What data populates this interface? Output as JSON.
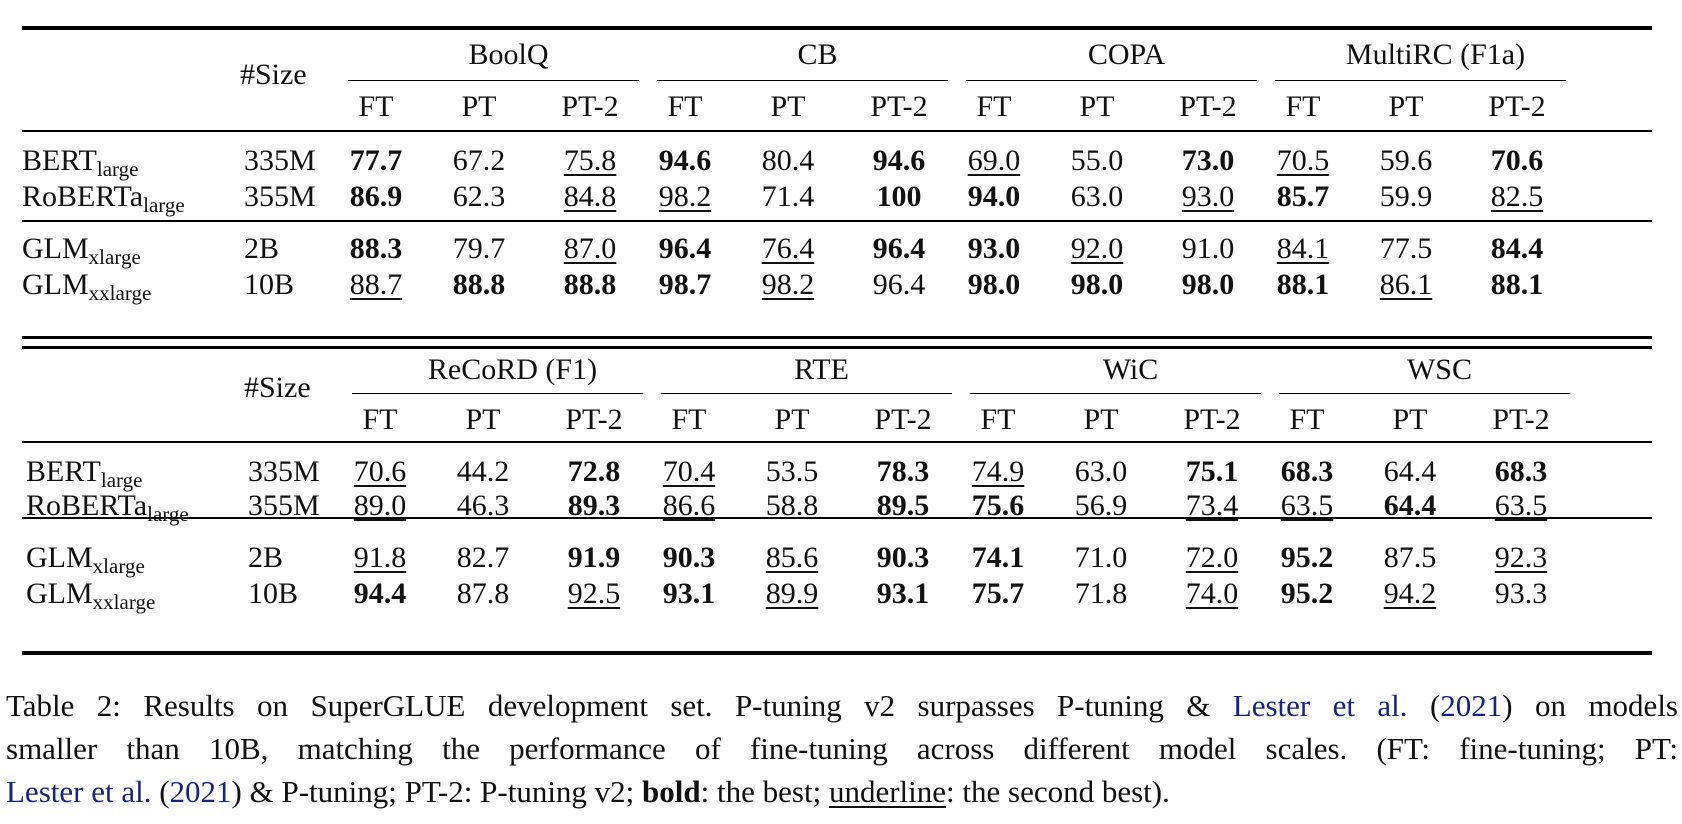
{
  "tables": [
    {
      "size_header": "#Size",
      "groups": [
        "BoolQ",
        "CB",
        "COPA",
        "MultiRC (F1a)"
      ],
      "sub_headers": [
        "FT",
        "PT",
        "PT-2"
      ],
      "sections": [
        [
          {
            "model": "BERT",
            "model_sub": "large",
            "size": "335M",
            "cells": [
              {
                "v": "77.7",
                "s": "b"
              },
              {
                "v": "67.2",
                "s": ""
              },
              {
                "v": "75.8",
                "s": "u"
              },
              {
                "v": "94.6",
                "s": "b"
              },
              {
                "v": "80.4",
                "s": ""
              },
              {
                "v": "94.6",
                "s": "b"
              },
              {
                "v": "69.0",
                "s": "u"
              },
              {
                "v": "55.0",
                "s": ""
              },
              {
                "v": "73.0",
                "s": "b"
              },
              {
                "v": "70.5",
                "s": "u"
              },
              {
                "v": "59.6",
                "s": ""
              },
              {
                "v": "70.6",
                "s": "b"
              }
            ]
          },
          {
            "model": "RoBERTa",
            "model_sub": "large",
            "size": "355M",
            "cells": [
              {
                "v": "86.9",
                "s": "b"
              },
              {
                "v": "62.3",
                "s": ""
              },
              {
                "v": "84.8",
                "s": "u"
              },
              {
                "v": "98.2",
                "s": "u"
              },
              {
                "v": "71.4",
                "s": ""
              },
              {
                "v": "100",
                "s": "b"
              },
              {
                "v": "94.0",
                "s": "b"
              },
              {
                "v": "63.0",
                "s": ""
              },
              {
                "v": "93.0",
                "s": "u"
              },
              {
                "v": "85.7",
                "s": "b"
              },
              {
                "v": "59.9",
                "s": ""
              },
              {
                "v": "82.5",
                "s": "u"
              }
            ]
          }
        ],
        [
          {
            "model": "GLM",
            "model_sub": "xlarge",
            "size": "2B",
            "cells": [
              {
                "v": "88.3",
                "s": "b"
              },
              {
                "v": "79.7",
                "s": ""
              },
              {
                "v": "87.0",
                "s": "u"
              },
              {
                "v": "96.4",
                "s": "b"
              },
              {
                "v": "76.4",
                "s": "u"
              },
              {
                "v": "96.4",
                "s": "b"
              },
              {
                "v": "93.0",
                "s": "b"
              },
              {
                "v": "92.0",
                "s": "u"
              },
              {
                "v": "91.0",
                "s": ""
              },
              {
                "v": "84.1",
                "s": "u"
              },
              {
                "v": "77.5",
                "s": ""
              },
              {
                "v": "84.4",
                "s": "b"
              }
            ]
          },
          {
            "model": "GLM",
            "model_sub": "xxlarge",
            "size": "10B",
            "cells": [
              {
                "v": "88.7",
                "s": "u"
              },
              {
                "v": "88.8",
                "s": "b"
              },
              {
                "v": "88.8",
                "s": "b"
              },
              {
                "v": "98.7",
                "s": "b"
              },
              {
                "v": "98.2",
                "s": "u"
              },
              {
                "v": "96.4",
                "s": ""
              },
              {
                "v": "98.0",
                "s": "b"
              },
              {
                "v": "98.0",
                "s": "b"
              },
              {
                "v": "98.0",
                "s": "b"
              },
              {
                "v": "88.1",
                "s": "b"
              },
              {
                "v": "86.1",
                "s": "u"
              },
              {
                "v": "88.1",
                "s": "b"
              }
            ]
          }
        ]
      ]
    },
    {
      "size_header": "#Size",
      "groups": [
        "ReCoRD (F1)",
        "RTE",
        "WiC",
        "WSC"
      ],
      "sub_headers": [
        "FT",
        "PT",
        "PT-2"
      ],
      "sections": [
        [
          {
            "model": "BERT",
            "model_sub": "large",
            "size": "335M",
            "cells": [
              {
                "v": "70.6",
                "s": "u"
              },
              {
                "v": "44.2",
                "s": ""
              },
              {
                "v": "72.8",
                "s": "b"
              },
              {
                "v": "70.4",
                "s": "u"
              },
              {
                "v": "53.5",
                "s": ""
              },
              {
                "v": "78.3",
                "s": "b"
              },
              {
                "v": "74.9",
                "s": "u"
              },
              {
                "v": "63.0",
                "s": ""
              },
              {
                "v": "75.1",
                "s": "b"
              },
              {
                "v": "68.3",
                "s": "b"
              },
              {
                "v": "64.4",
                "s": ""
              },
              {
                "v": "68.3",
                "s": "b"
              }
            ]
          },
          {
            "model": "RoBERTa",
            "model_sub": "large",
            "size": "355M",
            "cells": [
              {
                "v": "89.0",
                "s": "u"
              },
              {
                "v": "46.3",
                "s": ""
              },
              {
                "v": "89.3",
                "s": "b"
              },
              {
                "v": "86.6",
                "s": "u"
              },
              {
                "v": "58.8",
                "s": ""
              },
              {
                "v": "89.5",
                "s": "b"
              },
              {
                "v": "75.6",
                "s": "b"
              },
              {
                "v": "56.9",
                "s": ""
              },
              {
                "v": "73.4",
                "s": "u"
              },
              {
                "v": "63.5",
                "s": "u"
              },
              {
                "v": "64.4",
                "s": "b"
              },
              {
                "v": "63.5",
                "s": "u"
              }
            ]
          }
        ],
        [
          {
            "model": "GLM",
            "model_sub": "xlarge",
            "size": "2B",
            "cells": [
              {
                "v": "91.8",
                "s": "u"
              },
              {
                "v": "82.7",
                "s": ""
              },
              {
                "v": "91.9",
                "s": "b"
              },
              {
                "v": "90.3",
                "s": "b"
              },
              {
                "v": "85.6",
                "s": "u"
              },
              {
                "v": "90.3",
                "s": "b"
              },
              {
                "v": "74.1",
                "s": "b"
              },
              {
                "v": "71.0",
                "s": ""
              },
              {
                "v": "72.0",
                "s": "u"
              },
              {
                "v": "95.2",
                "s": "b"
              },
              {
                "v": "87.5",
                "s": ""
              },
              {
                "v": "92.3",
                "s": "u"
              }
            ]
          },
          {
            "model": "GLM",
            "model_sub": "xxlarge",
            "size": "10B",
            "cells": [
              {
                "v": "94.4",
                "s": "b"
              },
              {
                "v": "87.8",
                "s": ""
              },
              {
                "v": "92.5",
                "s": "u"
              },
              {
                "v": "93.1",
                "s": "b"
              },
              {
                "v": "89.9",
                "s": "u"
              },
              {
                "v": "93.1",
                "s": "b"
              },
              {
                "v": "75.7",
                "s": "b"
              },
              {
                "v": "71.8",
                "s": ""
              },
              {
                "v": "74.0",
                "s": "u"
              },
              {
                "v": "95.2",
                "s": "b"
              },
              {
                "v": "94.2",
                "s": "u"
              },
              {
                "v": "93.3",
                "s": ""
              }
            ]
          }
        ]
      ]
    }
  ],
  "caption": {
    "l1_a": "Table 2: Results on SuperGLUE development set. P-tuning v2 surpasses P-tuning & ",
    "cite_author": "Lester et al.",
    "cite_year": "2021",
    "l1_b": " on models",
    "l2": "smaller than 10B, matching the performance of fine-tuning across different model scales. (FT: fine-tuning; PT:",
    "l3_a": " & P-tuning; PT-2: P-tuning v2; ",
    "bold_word": "bold",
    "l3_b": ": the best; ",
    "underline_word": "underline",
    "l3_c": ": the second best)."
  },
  "colors": {
    "citation": "#1a237e",
    "text": "#111111",
    "rule": "#000000"
  }
}
